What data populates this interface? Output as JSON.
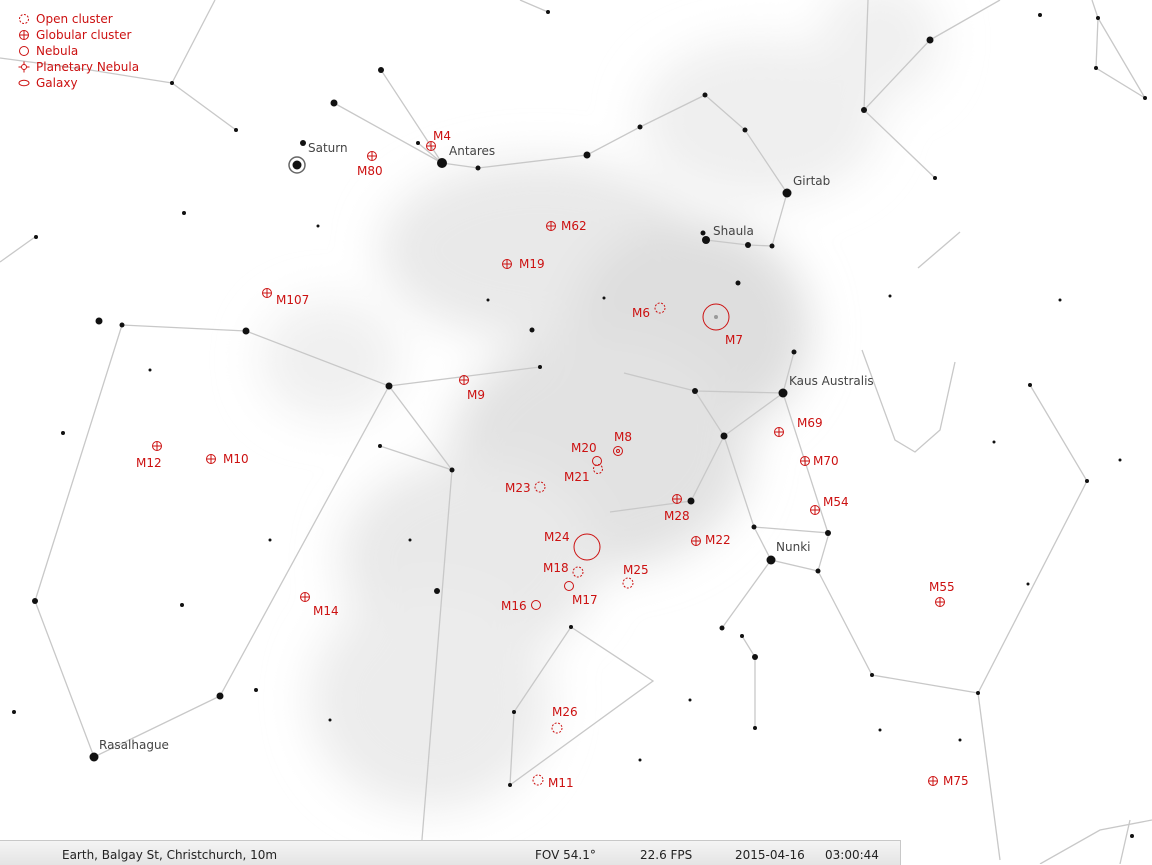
{
  "legend": [
    {
      "label": "Open cluster",
      "icon": "open-cluster-icon"
    },
    {
      "label": "Globular cluster",
      "icon": "globular-cluster-icon"
    },
    {
      "label": "Nebula",
      "icon": "nebula-icon"
    },
    {
      "label": "Planetary Nebula",
      "icon": "planetary-nebula-icon"
    },
    {
      "label": "Galaxy",
      "icon": "galaxy-icon"
    }
  ],
  "star_labels": [
    "Saturn",
    "Antares",
    "Girtab",
    "Shaula",
    "Kaus Australis",
    "Nunki",
    "Rasalhague"
  ],
  "dso_labels": [
    "M4",
    "M80",
    "M62",
    "M19",
    "M107",
    "M6",
    "M7",
    "M9",
    "M12",
    "M10",
    "M20",
    "M8",
    "M21",
    "M23",
    "M28",
    "M69",
    "M70",
    "M54",
    "M24",
    "M22",
    "M18",
    "M25",
    "M17",
    "M16",
    "M14",
    "M55",
    "M26",
    "M11",
    "M75"
  ],
  "status": {
    "location": "Earth, Balgay St, Christchurch, 10m",
    "fov": "FOV 54.1°",
    "fps": "22.6 FPS",
    "date": "2015-04-16",
    "time": "03:00:44"
  },
  "colors": {
    "dso": "#cc1111",
    "lines": "#cccccc",
    "background": "#ffffff"
  }
}
